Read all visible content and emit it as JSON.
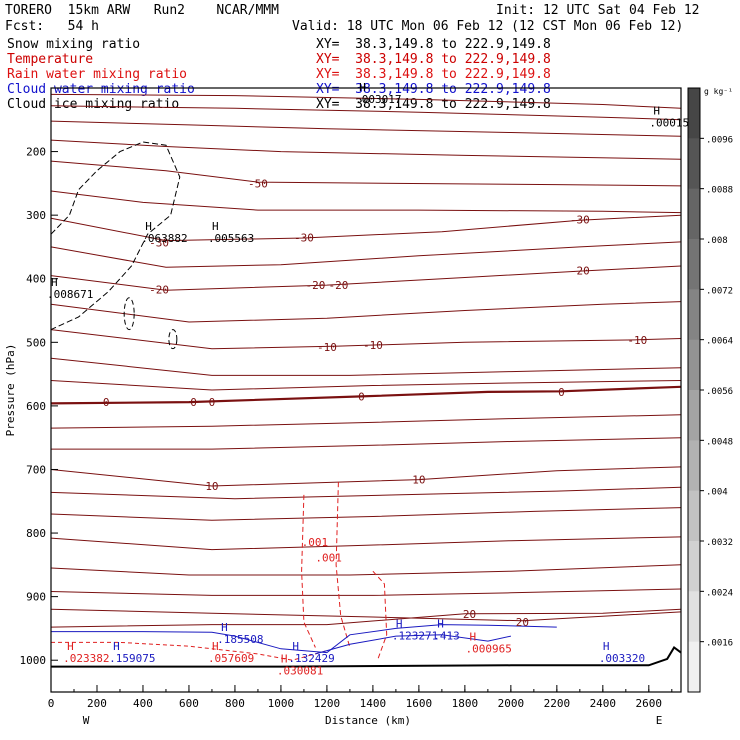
{
  "header": {
    "model": "TORERO  15km ARW   Run2    NCAR/MMM",
    "init": "Init: 12 UTC Sat 04 Feb 12",
    "fcst": "Fcst:   54 h",
    "valid": "Valid: 18 UTC Mon 06 Feb 12 (12 CST Mon 06 Feb 12)"
  },
  "fields": [
    {
      "name": "Snow mixing ratio",
      "xy": "XY=  38.3,149.8 to 222.9,149.8",
      "color": "#000000"
    },
    {
      "name": "Temperature",
      "xy": "XY=  38.3,149.8 to 222.9,149.8",
      "color": "#cc0000"
    },
    {
      "name": "Rain water mixing ratio",
      "xy": "XY=  38.3,149.8 to 222.9,149.8",
      "color": "#dd1111"
    },
    {
      "name": "Cloud water mixing ratio",
      "xy": "XY=  38.3,149.8 to 222.9,149.8",
      "color": "#1111cc"
    },
    {
      "name": "Cloud ice mixing ratio",
      "xy": "XY=  38.3,149.8 to 222.9,149.8",
      "color": "#000000"
    }
  ],
  "chart_data": {
    "type": "contour-cross-section",
    "xlabel": "Distance (km)",
    "ylabel": "Pressure (hPa)",
    "xlim": [
      0,
      2740
    ],
    "ylim": [
      100,
      1050
    ],
    "xticks": [
      0,
      200,
      400,
      600,
      800,
      1000,
      1200,
      1400,
      1600,
      1800,
      2000,
      2200,
      2400,
      2600
    ],
    "yticks": [
      200,
      300,
      400,
      500,
      600,
      700,
      800,
      900,
      1000
    ],
    "endpoints": {
      "left": "W",
      "right": "E"
    },
    "colorbar": {
      "unit": "g kg⁻¹",
      "labels": [
        ".0096",
        ".0088",
        ".008",
        ".0072",
        ".0064",
        ".0056",
        ".0048",
        ".004",
        ".0032",
        ".0024",
        ".0016"
      ]
    },
    "temperature_isotherm_labels": [
      {
        "text": "-50",
        "x": 900,
        "p": 250
      },
      {
        "text": "-30",
        "x": 470,
        "p": 343
      },
      {
        "text": "-30",
        "x": 1100,
        "p": 335
      },
      {
        "text": "-30",
        "x": 2300,
        "p": 307
      },
      {
        "text": "-20",
        "x": 470,
        "p": 417
      },
      {
        "text": "-20",
        "x": 1150,
        "p": 410
      },
      {
        "text": "-20",
        "x": 1250,
        "p": 410
      },
      {
        "text": "-20",
        "x": 2300,
        "p": 387
      },
      {
        "text": "-10",
        "x": 1200,
        "p": 507
      },
      {
        "text": "-10",
        "x": 1400,
        "p": 504
      },
      {
        "text": "-10",
        "x": 2550,
        "p": 496
      },
      {
        "text": "0",
        "x": 620,
        "p": 594
      },
      {
        "text": "0",
        "x": 700,
        "p": 594
      },
      {
        "text": "0",
        "x": 1350,
        "p": 585
      },
      {
        "text": "0",
        "x": 2220,
        "p": 578
      },
      {
        "text": "10",
        "x": 700,
        "p": 726
      },
      {
        "text": "10",
        "x": 1600,
        "p": 716
      },
      {
        "text": "20",
        "x": 1820,
        "p": 927
      },
      {
        "text": "20",
        "x": 2050,
        "p": 940
      },
      {
        "text": "0",
        "x": 240,
        "p": 594
      }
    ],
    "rain_labels": [
      ".001",
      ".001"
    ],
    "maxima": [
      {
        "text": "H",
        "value": ".000150",
        "x": 2620,
        "p": 148
      },
      {
        "text": "H",
        "value": ".063882",
        "x": 410,
        "p": 330
      },
      {
        "text": "H",
        "value": ".005563",
        "x": 700,
        "p": 330
      },
      {
        "text": "H",
        "value": ".008671",
        "x": 0,
        "p": 418
      },
      {
        "text": "H",
        "value": ".003017",
        "x": 1340,
        "p": 111
      },
      {
        "text": "H",
        "value": ".023382",
        "x": 70,
        "p": 990
      },
      {
        "text": "H",
        "value": ".159075",
        "x": 270,
        "p": 990
      },
      {
        "text": "H",
        "value": ".185508",
        "x": 740,
        "p": 960
      },
      {
        "text": "H",
        "value": ".057609",
        "x": 700,
        "p": 990
      },
      {
        "text": "H",
        "value": ".132429",
        "x": 1050,
        "p": 990
      },
      {
        "text": "H",
        "value": ".030081",
        "x": 1000,
        "p": 1010
      },
      {
        "text": "H",
        "value": ".123271",
        "x": 1500,
        "p": 955
      },
      {
        "text": "H",
        "value": ".413",
        "x": 1680,
        "p": 955
      },
      {
        "text": "H",
        "value": ".000965",
        "x": 1820,
        "p": 975
      },
      {
        "text": "H",
        "value": ".003320",
        "x": 2400,
        "p": 990
      }
    ]
  }
}
